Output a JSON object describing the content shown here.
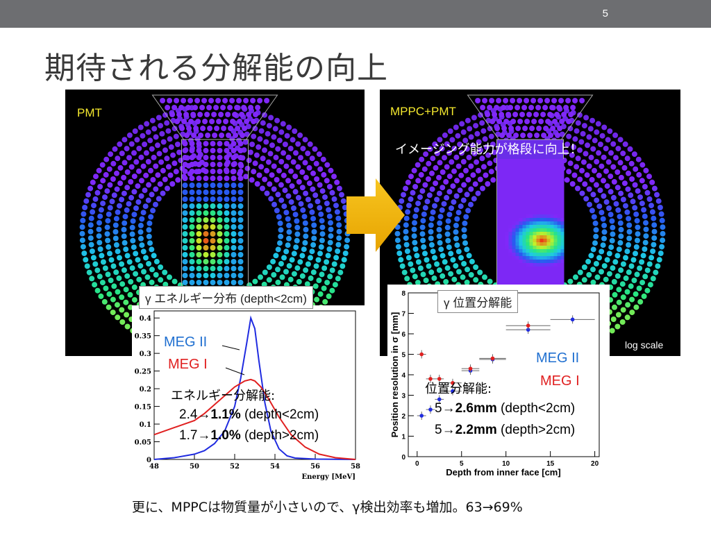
{
  "slide": {
    "number": "5",
    "title": "期待される分解能の向上",
    "footer": "更に、MPPCは物質量が小さいので、γ検出効率も増加。63→69%"
  },
  "left_panel": {
    "label": "PMT"
  },
  "right_panel": {
    "label": "MPPC+PMT",
    "caption": "イメージング能力が格段に向上！",
    "scale_note": "log scale"
  },
  "energy_chart": {
    "box_label": "γ エネルギー分布 (depth<2cm)",
    "legend_meg2": "MEG II",
    "legend_meg1": "MEG I",
    "resolution_title": "エネルギー分解能:",
    "line1_pre": "2.4→",
    "line1_bold": "1.1%",
    "line1_post": " (depth<2cm)",
    "line2_pre": "1.7→",
    "line2_bold": "1.0%",
    "line2_post": " (depth>2cm)",
    "colors": {
      "meg2": "#1f2be0",
      "meg1": "#e02020"
    }
  },
  "position_chart": {
    "box_label": "γ 位置分解能",
    "legend_meg2": "MEG II",
    "legend_meg1": "MEG I",
    "resolution_title": "位置分解能:",
    "line1_pre": "5→",
    "line1_bold": "2.6mm",
    "line1_post": " (depth<2cm)",
    "line2_pre": "5→",
    "line2_bold": "2.2mm",
    "line2_post": " (depth>2cm)"
  },
  "chart_data": [
    {
      "type": "line",
      "title": "",
      "xlabel": "Energy [MeV]",
      "ylabel": "",
      "xlim": [
        48,
        58
      ],
      "ylim": [
        0,
        0.42
      ],
      "x_ticks": [
        "48",
        "50",
        "52",
        "54",
        "56",
        "58"
      ],
      "y_ticks": [
        "0",
        "0.05",
        "0.1",
        "0.15",
        "0.2",
        "0.25",
        "0.3",
        "0.35",
        "0.4"
      ],
      "series": [
        {
          "name": "MEG II",
          "color": "#1f2be0",
          "x": [
            48,
            49,
            50,
            50.5,
            51,
            51.5,
            52,
            52.3,
            52.6,
            52.8,
            53,
            53.2,
            53.5,
            53.8,
            54.2,
            54.6,
            55,
            56,
            58
          ],
          "y": [
            0.0,
            0.005,
            0.015,
            0.025,
            0.045,
            0.08,
            0.15,
            0.23,
            0.33,
            0.4,
            0.37,
            0.28,
            0.16,
            0.08,
            0.03,
            0.01,
            0.004,
            0.001,
            0.0
          ]
        },
        {
          "name": "MEG I",
          "color": "#e02020",
          "x": [
            48,
            49,
            50,
            50.5,
            51,
            51.5,
            52,
            52.5,
            52.8,
            53,
            53.3,
            53.7,
            54.2,
            54.8,
            55.5,
            56.2,
            57,
            58
          ],
          "y": [
            0.07,
            0.09,
            0.11,
            0.13,
            0.155,
            0.18,
            0.205,
            0.222,
            0.226,
            0.222,
            0.205,
            0.17,
            0.12,
            0.07,
            0.035,
            0.015,
            0.005,
            0.0
          ]
        }
      ]
    },
    {
      "type": "scatter",
      "title": "",
      "xlabel": "Depth from inner face [cm]",
      "ylabel": "Position resolution in σ [mm]",
      "xlim": [
        -1,
        20.5
      ],
      "ylim": [
        0,
        8
      ],
      "x_ticks": [
        "0",
        "5",
        "10",
        "15",
        "20"
      ],
      "y_ticks": [
        "0",
        "1",
        "2",
        "3",
        "4",
        "5",
        "6",
        "7",
        "8"
      ],
      "series": [
        {
          "name": "MEG II",
          "color": "#1f2be0",
          "x": [
            0.5,
            1.5,
            2.5,
            4,
            6,
            8.5,
            12.5,
            17.5
          ],
          "y": [
            2.0,
            2.3,
            2.8,
            3.2,
            4.2,
            4.75,
            6.2,
            6.7
          ]
        },
        {
          "name": "MEG I",
          "color": "#e02020",
          "x": [
            0.5,
            1.5,
            2.5,
            4,
            6,
            8.5,
            12.5
          ],
          "y": [
            5.0,
            3.8,
            3.8,
            3.6,
            4.3,
            4.8,
            6.4
          ]
        }
      ]
    }
  ]
}
